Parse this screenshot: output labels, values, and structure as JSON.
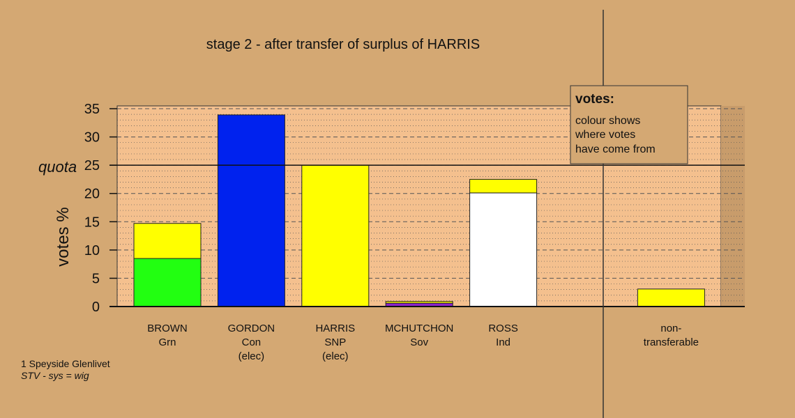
{
  "title": "stage 2 - after transfer of surplus of HARRIS",
  "quota_label": "quota",
  "footer": {
    "line1": "1 Speyside Glenlivet",
    "line2": "STV - sys = wig"
  },
  "legend": {
    "title": "votes:",
    "lines": [
      "colour shows",
      "where votes",
      "have come from"
    ]
  },
  "colors": {
    "background": "#d4a873",
    "plot_fill": "#f4c08e",
    "legend_fill": "#d4a873",
    "grid": "#555555"
  },
  "chart_data": {
    "type": "bar",
    "stacked": true,
    "ylabel": "votes %",
    "ylim": [
      0,
      35
    ],
    "yticks": [
      0,
      5,
      10,
      15,
      20,
      25,
      30,
      35
    ],
    "quota": 25,
    "grid": true,
    "legend_position": "top-right",
    "categories": [
      {
        "label": [
          "BROWN",
          "Grn"
        ],
        "segments": [
          {
            "value": 8.5,
            "color": "#22ff11"
          },
          {
            "value": 6.2,
            "color": "#ffff00"
          }
        ]
      },
      {
        "label": [
          "GORDON",
          "Con",
          "(elec)"
        ],
        "segments": [
          {
            "value": 33.9,
            "color": "#0022ee"
          }
        ]
      },
      {
        "label": [
          "HARRIS",
          "SNP",
          "(elec)"
        ],
        "segments": [
          {
            "value": 25.0,
            "color": "#ffff00"
          }
        ]
      },
      {
        "label": [
          "MCHUTCHON",
          "Sov"
        ],
        "segments": [
          {
            "value": 0.6,
            "color": "#8b22cc"
          },
          {
            "value": 0.3,
            "color": "#ffff00"
          }
        ]
      },
      {
        "label": [
          "ROSS",
          "Ind"
        ],
        "segments": [
          {
            "value": 20.1,
            "color": "#ffffff"
          },
          {
            "value": 2.4,
            "color": "#ffff00"
          }
        ]
      },
      {
        "label": [
          "",
          ""
        ],
        "segments": []
      },
      {
        "label": [
          "non-",
          "transferable"
        ],
        "segments": [
          {
            "value": 3.1,
            "color": "#ffff00"
          }
        ]
      }
    ]
  }
}
